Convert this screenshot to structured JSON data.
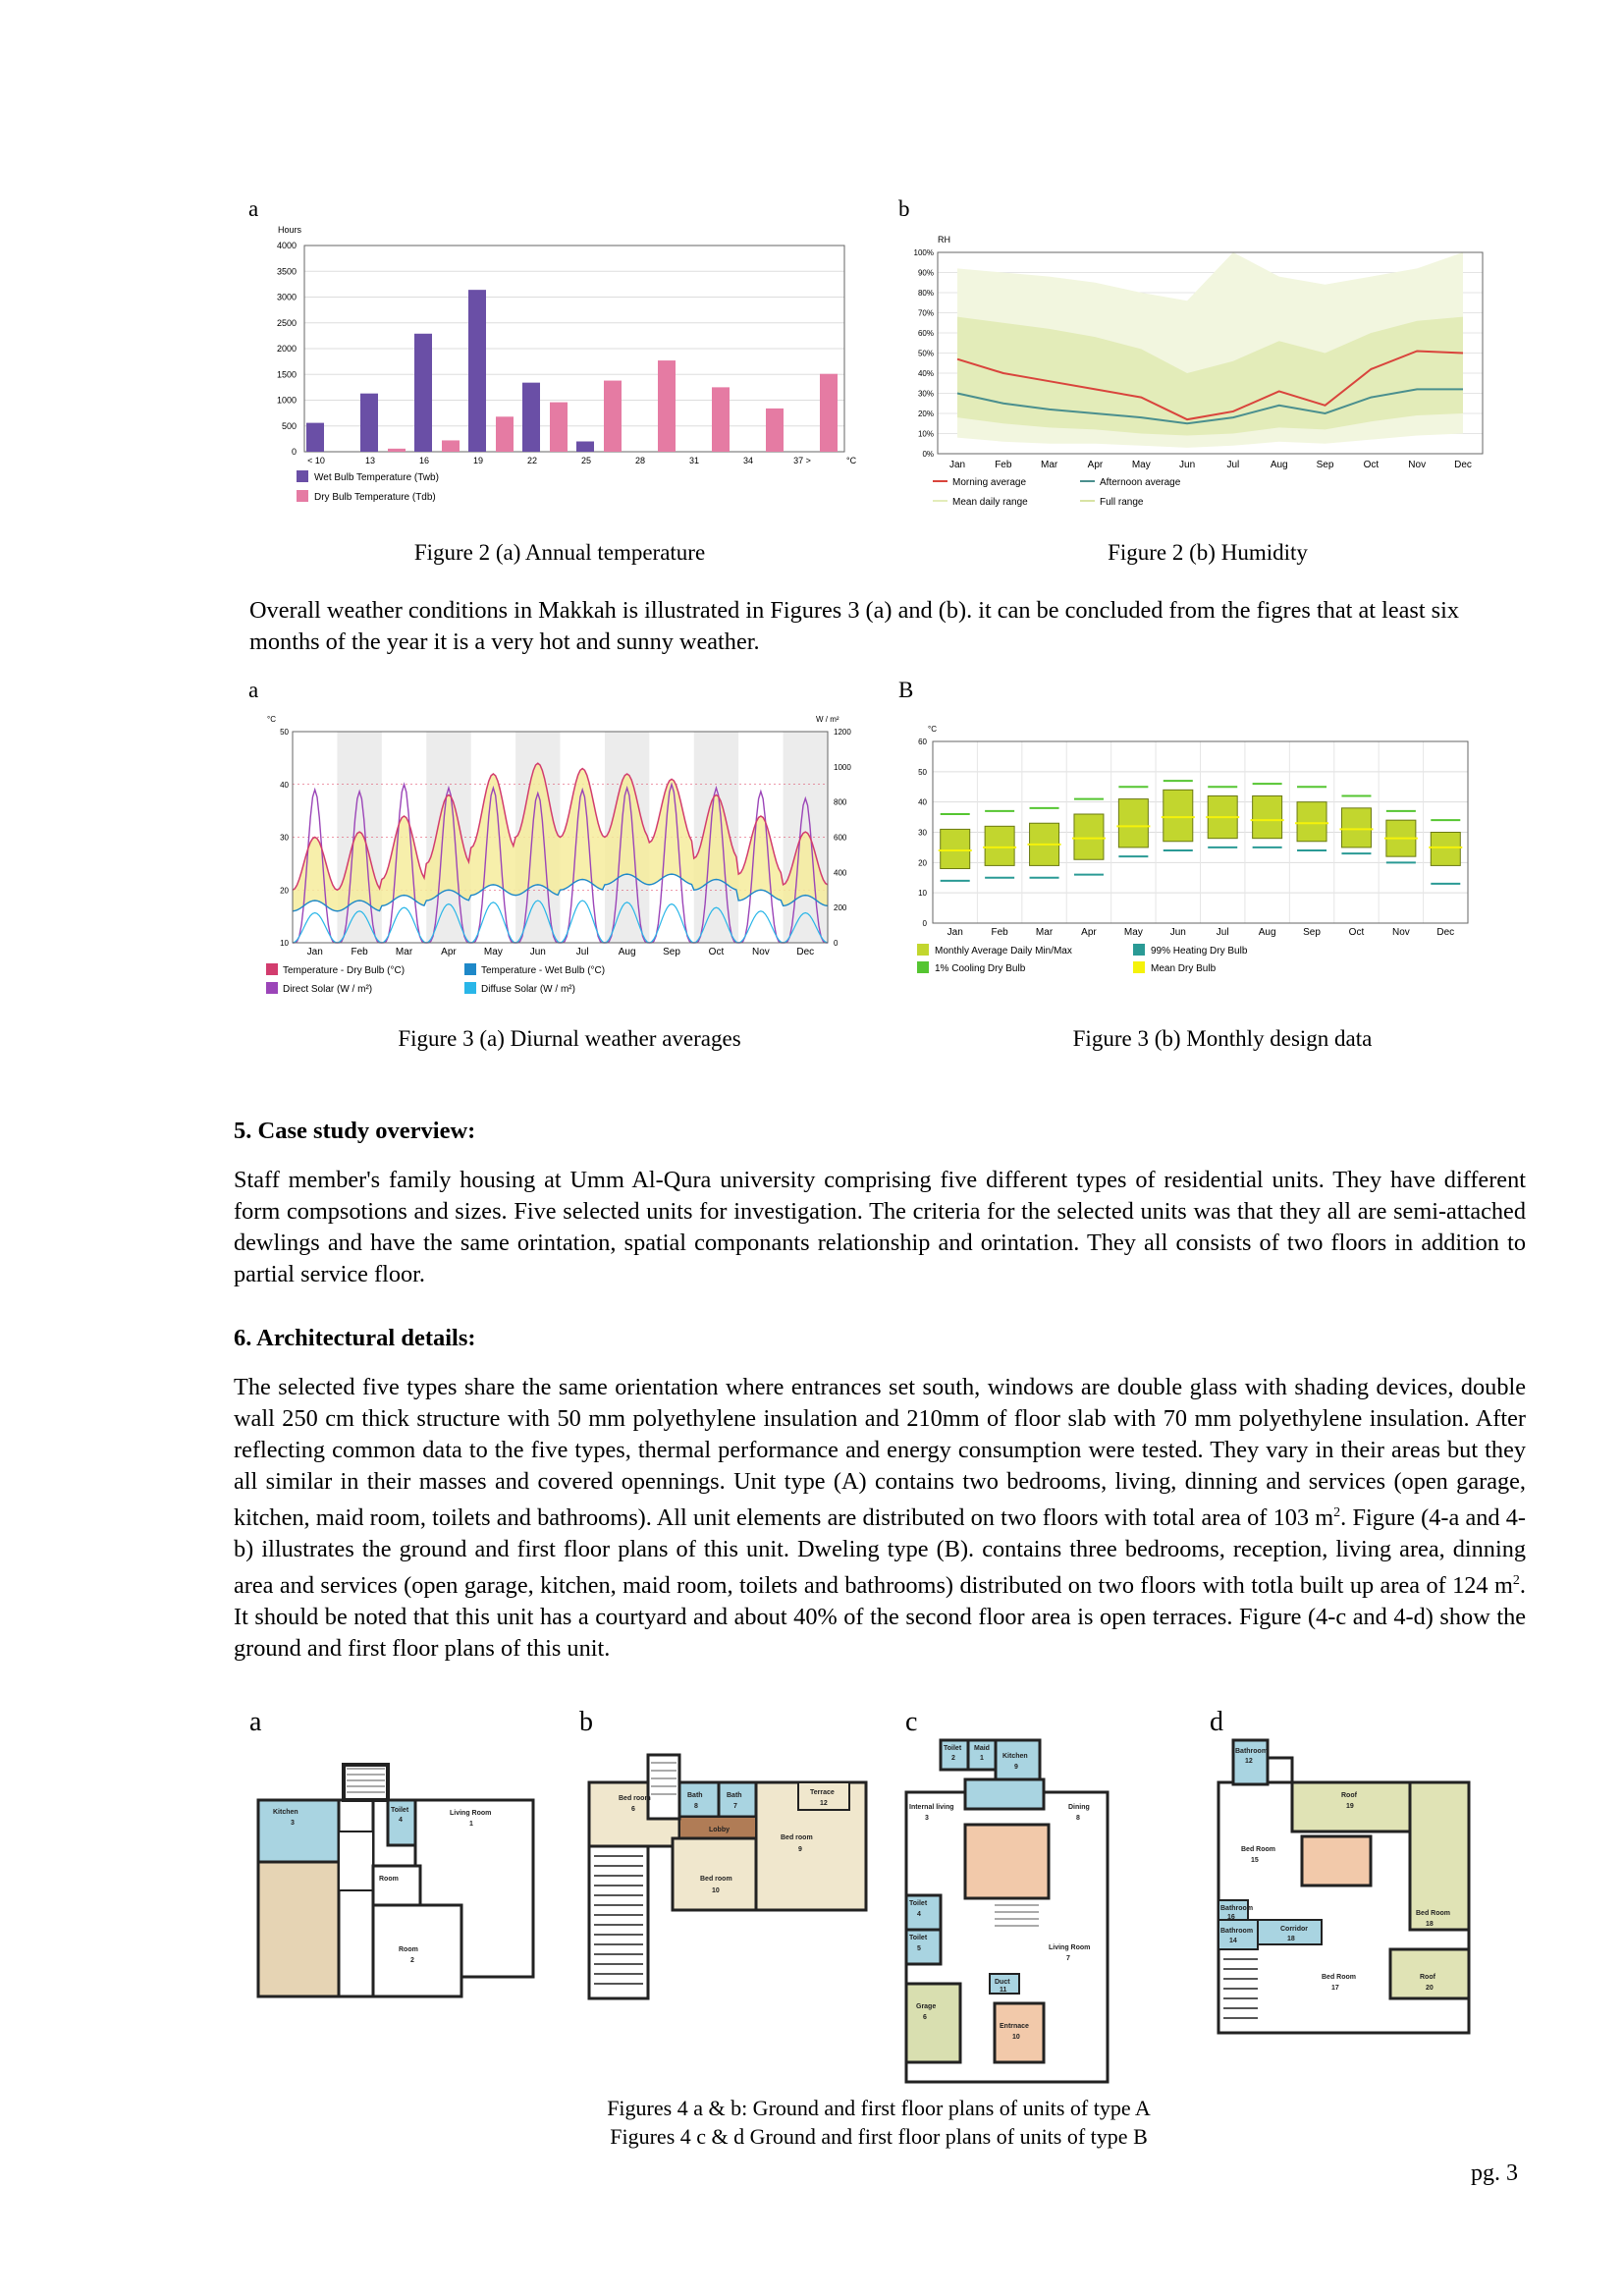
{
  "fig2": {
    "letter_a": "a",
    "letter_b": "b",
    "caption_a": "Figure 2 (a) Annual temperature",
    "caption_b": "Figure 2 (b) Humidity"
  },
  "para_weather": "Overall weather conditions in Makkah is illustrated in Figures 3 (a) and (b). it can be concluded from the figres that at least six months of the year it is a very hot and sunny weather.",
  "fig3": {
    "letter_a": "a",
    "letter_b": "B",
    "caption_a": "Figure 3 (a) Diurnal weather averages",
    "caption_b": "Figure 3 (b) Monthly design data"
  },
  "section5": {
    "heading": "5. Case study overview:",
    "text": "Staff member's family housing at Umm Al-Qura university comprising five different types of residential units. They have different form compsotions and sizes. Five selected units for investigation. The criteria for the selected units was that they all are semi-attached dewlings and have the same orintation, spatial componants relationship and orintation. They all consists of two floors in addition to partial service floor."
  },
  "section6": {
    "heading": "6. Architectural details:",
    "text_1": "The selected five types share the same orientation where entrances set south, windows are double glass with shading devices, double wall 250 cm thick structure with 50 mm polyethylene insulation and 210mm of floor slab with 70 mm polyethylene insulation. After reflecting common data to the five types, thermal performance and energy consumption were tested. They vary in their areas but they all similar in their masses and covered opennings. Unit type (A) contains two bedrooms, living, dinning and services (open garage, kitchen, maid room, toilets and bathrooms). All unit elements are distributed on two floors with total area of 103 m",
    "sup_1": "2",
    "text_2": ". Figure (4-a and 4-b) illustrates the ground and first floor plans of this unit. Dweling type (B). contains three bedrooms, reception, living area, dinning area and services (open garage, kitchen, maid room, toilets and bathrooms) distributed on two floors with totla built up area of 124 m",
    "sup_2": "2",
    "text_3": ". It should be noted that this unit has a courtyard and about 40% of the second floor area is open terraces. Figure (4-c and 4-d) show the ground and first floor plans of this unit."
  },
  "fig4": {
    "letter_a": "a",
    "letter_b": "b",
    "letter_c": "c",
    "letter_d": "d",
    "caption_1": "Figures 4 a & b: Ground and first floor plans of units of type A",
    "caption_2": "Figures 4 c & d Ground and first floor plans of units of type B",
    "plan_a_labels": [
      "Kitchen",
      "3",
      "Toilet",
      "4",
      "Living Room",
      "1",
      "Room",
      "Room",
      "2"
    ],
    "plan_b_labels": [
      "Bed room",
      "6",
      "Bath",
      "8",
      "Bath",
      "7",
      "Terrace",
      "12",
      "Lobby",
      "Bed room",
      "9",
      "Bed room",
      "10"
    ],
    "plan_c_labels": [
      "Toilet",
      "2",
      "Maid",
      "1",
      "Kitchen",
      "9",
      "Internal living",
      "3",
      "Dining",
      "8",
      "Toilet",
      "4",
      "Toilet",
      "5",
      "Living Room",
      "7",
      "Duct",
      "11",
      "Grage",
      "6",
      "Entrnace",
      "10"
    ],
    "plan_d_labels": [
      "Bathroom",
      "12",
      "Roof",
      "19",
      "Bed Room",
      "15",
      "Bathroom",
      "16",
      "Bathroom",
      "14",
      "Corridor",
      "18",
      "Bed Room",
      "18",
      "Bed Room",
      "17",
      "Roof",
      "20"
    ]
  },
  "page_number": "pg. 3",
  "chart_data": [
    {
      "id": "fig2a",
      "type": "bar",
      "title": "",
      "ylabel": "Hours",
      "xlabel": "°C",
      "ylim": [
        0,
        4000
      ],
      "yticks": [
        0,
        500,
        1000,
        1500,
        2000,
        2500,
        3000,
        3500,
        4000
      ],
      "categories": [
        "< 10",
        "13",
        "16",
        "19",
        "22",
        "25",
        "28",
        "31",
        "34",
        "37 >"
      ],
      "series": [
        {
          "name": "Wet Bulb Temperature (Twb)",
          "color": "#6a4fa6",
          "values": [
            560,
            1130,
            2290,
            3140,
            1340,
            200,
            0,
            0,
            0,
            0
          ]
        },
        {
          "name": "Dry Bulb Temperature (Tdb)",
          "color": "#e57ba3",
          "values": [
            0,
            60,
            220,
            680,
            960,
            1380,
            1770,
            1250,
            840,
            1510
          ]
        }
      ],
      "grid": true,
      "legend": "bottom"
    },
    {
      "id": "fig2b",
      "type": "line",
      "title": "",
      "ylabel": "RH",
      "ylim": [
        0,
        100
      ],
      "yticks": [
        "0%",
        "10%",
        "20%",
        "30%",
        "40%",
        "50%",
        "60%",
        "70%",
        "80%",
        "90%",
        "100%"
      ],
      "categories": [
        "Jan",
        "Feb",
        "Mar",
        "Apr",
        "May",
        "Jun",
        "Jul",
        "Aug",
        "Sep",
        "Oct",
        "Nov",
        "Dec"
      ],
      "series": [
        {
          "name": "Morning average",
          "color": "#d9443c",
          "values": [
            47,
            40,
            36,
            32,
            28,
            17,
            21,
            31,
            24,
            42,
            51,
            50
          ]
        },
        {
          "name": "Afternoon average",
          "color": "#4a8f8e",
          "values": [
            30,
            25,
            22,
            20,
            18,
            15,
            18,
            24,
            20,
            28,
            32,
            32
          ]
        },
        {
          "name": "Mean daily range",
          "color": "#e3ecb9",
          "upper": [
            68,
            65,
            62,
            58,
            52,
            40,
            46,
            56,
            50,
            60,
            66,
            68
          ],
          "lower": [
            18,
            15,
            13,
            12,
            10,
            9,
            10,
            13,
            12,
            16,
            19,
            20
          ]
        },
        {
          "name": "Full range",
          "color": "#d8e3a4",
          "upper": [
            92,
            90,
            88,
            85,
            80,
            76,
            100,
            88,
            84,
            88,
            92,
            100
          ],
          "lower": [
            8,
            6,
            5,
            5,
            4,
            3,
            4,
            6,
            5,
            7,
            9,
            10
          ]
        }
      ],
      "grid": true,
      "legend": "bottom"
    },
    {
      "id": "fig3a",
      "type": "line",
      "title": "",
      "ylabel": "°C",
      "y2label": "W / m²",
      "ylim": [
        10,
        50
      ],
      "y2lim": [
        0,
        1200
      ],
      "yticks": [
        10,
        20,
        30,
        40,
        50
      ],
      "y2ticks": [
        0,
        200,
        400,
        600,
        800,
        1000,
        1200
      ],
      "categories": [
        "Jan",
        "Feb",
        "Mar",
        "Apr",
        "May",
        "Jun",
        "Jul",
        "Aug",
        "Sep",
        "Oct",
        "Nov",
        "Dec"
      ],
      "series": [
        {
          "name": "Temperature - Dry Bulb (°C)",
          "color": "#d23c6e",
          "daily_max": [
            30,
            31,
            34,
            38,
            42,
            44,
            43,
            42,
            41,
            38,
            34,
            31
          ],
          "daily_min": [
            20,
            20,
            22,
            25,
            28,
            30,
            30,
            30,
            29,
            26,
            23,
            21
          ]
        },
        {
          "name": "Temperature - Wet Bulb (°C)",
          "color": "#1e88c8",
          "daily_max": [
            18,
            18,
            19,
            20,
            21,
            21,
            22,
            23,
            23,
            22,
            20,
            19
          ],
          "daily_min": [
            16,
            16,
            17,
            18,
            19,
            19,
            20,
            21,
            21,
            20,
            18,
            17
          ]
        },
        {
          "name": "Direct Solar (W / m²)",
          "color": "#9b45b8",
          "daily_peak": [
            870,
            860,
            900,
            880,
            880,
            850,
            870,
            880,
            900,
            880,
            860,
            820
          ]
        },
        {
          "name": "Diffuse Solar (W / m²)",
          "color": "#29b6e8",
          "daily_peak": [
            170,
            180,
            200,
            220,
            230,
            240,
            240,
            230,
            220,
            200,
            180,
            170
          ]
        }
      ],
      "grid": true,
      "legend": "bottom"
    },
    {
      "id": "fig3b",
      "type": "box",
      "title": "",
      "ylabel": "°C",
      "ylim": [
        0,
        60
      ],
      "yticks": [
        0,
        10,
        20,
        30,
        40,
        50,
        60
      ],
      "categories": [
        "Jan",
        "Feb",
        "Mar",
        "Apr",
        "May",
        "Jun",
        "Jul",
        "Aug",
        "Sep",
        "Oct",
        "Nov",
        "Dec"
      ],
      "series": [
        {
          "name": "Monthly Average Daily Min/Max",
          "color": "#c2d62e",
          "min": [
            18,
            19,
            19,
            21,
            25,
            27,
            28,
            28,
            27,
            25,
            22,
            19
          ],
          "max": [
            31,
            32,
            33,
            36,
            41,
            44,
            42,
            42,
            40,
            38,
            34,
            30
          ]
        },
        {
          "name": "99% Heating Dry Bulb",
          "color": "#2a9a95",
          "values": [
            14,
            15,
            15,
            16,
            22,
            24,
            25,
            25,
            24,
            23,
            20,
            13
          ]
        },
        {
          "name": "1% Cooling Dry Bulb",
          "color": "#55c531",
          "values": [
            36,
            37,
            38,
            41,
            45,
            47,
            45,
            46,
            45,
            42,
            37,
            34
          ]
        },
        {
          "name": "Mean Dry Bulb",
          "color": "#f5f20a",
          "values": [
            24,
            25,
            26,
            28,
            32,
            35,
            35,
            34,
            33,
            31,
            28,
            25
          ]
        }
      ],
      "grid": true,
      "legend": "bottom"
    }
  ]
}
